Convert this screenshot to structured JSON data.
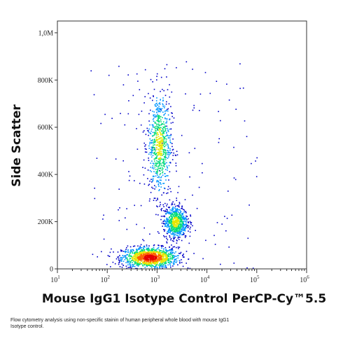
{
  "chart_data": {
    "type": "scatter",
    "title": "",
    "xlabel": "Mouse IgG1 Isotype Control PerCP-Cy™5.5",
    "ylabel": "Side Scatter",
    "x_scale": "log",
    "xlim": [
      10,
      1000000
    ],
    "ylim": [
      0,
      1050000
    ],
    "x_ticks": [
      {
        "value": 10,
        "base": "10",
        "exp": "1"
      },
      {
        "value": 100,
        "base": "10",
        "exp": "2"
      },
      {
        "value": 1000,
        "base": "10",
        "exp": "3"
      },
      {
        "value": 10000,
        "base": "10",
        "exp": "4"
      },
      {
        "value": 100000,
        "base": "10",
        "exp": "5"
      },
      {
        "value": 1000000,
        "base": "10",
        "exp": "6"
      }
    ],
    "y_ticks": [
      {
        "value": 0,
        "label": "0"
      },
      {
        "value": 200000,
        "label": "200K"
      },
      {
        "value": 400000,
        "label": "400K"
      },
      {
        "value": 600000,
        "label": "600K"
      },
      {
        "value": 800000,
        "label": "800K"
      },
      {
        "value": 1000000,
        "label": "1,0M"
      }
    ],
    "grid": false,
    "color_scale": [
      "#0000c8",
      "#0096ff",
      "#00dc78",
      "#e6e600",
      "#ff6400",
      "#e60000"
    ],
    "populations": [
      {
        "x_center": 700,
        "y_center": 50000,
        "x_spread_log": 0.28,
        "y_spread": 22000,
        "density": "high"
      },
      {
        "x_center": 1100,
        "y_center": 530000,
        "x_spread_log": 0.12,
        "y_spread": 110000,
        "density": "medium"
      },
      {
        "x_center": 2300,
        "y_center": 200000,
        "x_spread_log": 0.12,
        "y_spread": 35000,
        "density": "medium"
      }
    ]
  },
  "caption": "Flow cytometry analysis using non-specific stainin of human peripheral whole blood with mouse IgG1 Isotype control."
}
